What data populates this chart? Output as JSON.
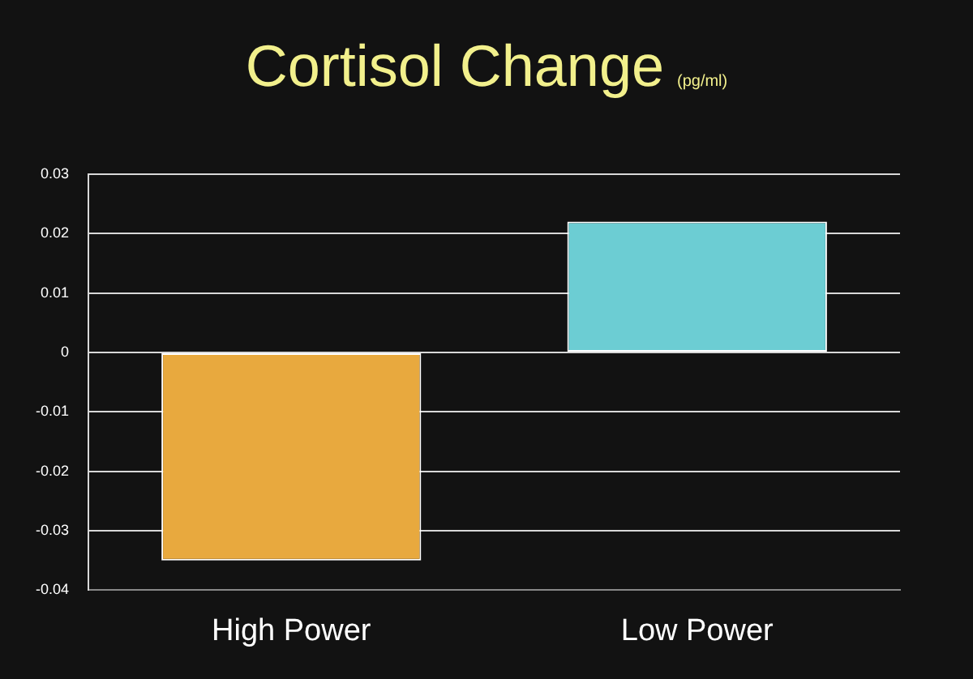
{
  "chart_data": {
    "type": "bar",
    "title": "Cortisol Change",
    "subtitle": "(pg/ml)",
    "categories": [
      "High Power",
      "Low Power"
    ],
    "colors": [
      "#e8a93e",
      "#6ccdd3"
    ],
    "values": [
      -0.035,
      0.022
    ],
    "ylim": [
      -0.04,
      0.03
    ],
    "yticks": [
      -0.04,
      -0.03,
      -0.02,
      -0.01,
      0,
      0.01,
      0.02,
      0.03
    ],
    "grid": "y"
  }
}
